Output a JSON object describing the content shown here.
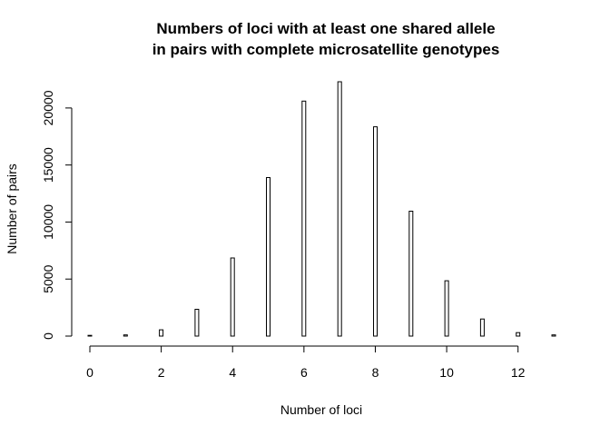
{
  "chart_data": {
    "type": "bar",
    "title_line1": "Numbers of loci with at least one shared allele",
    "title_line2": "in pairs with complete microsatellite genotypes",
    "xlabel": "Number of loci",
    "ylabel": "Number of pairs",
    "x": [
      0,
      1,
      2,
      3,
      4,
      5,
      6,
      7,
      8,
      9,
      10,
      11,
      12,
      13
    ],
    "values": [
      0,
      100,
      550,
      2350,
      6850,
      13900,
      20600,
      22300,
      18350,
      10950,
      4850,
      1500,
      300,
      100
    ],
    "xlim": [
      0,
      13
    ],
    "ylim": [
      0,
      22300
    ],
    "x_ticks": [
      "0",
      "2",
      "4",
      "6",
      "8",
      "10",
      "12"
    ],
    "y_ticks": [
      "0",
      "5000",
      "10000",
      "15000",
      "20000"
    ],
    "grid": false,
    "legend": "none"
  }
}
